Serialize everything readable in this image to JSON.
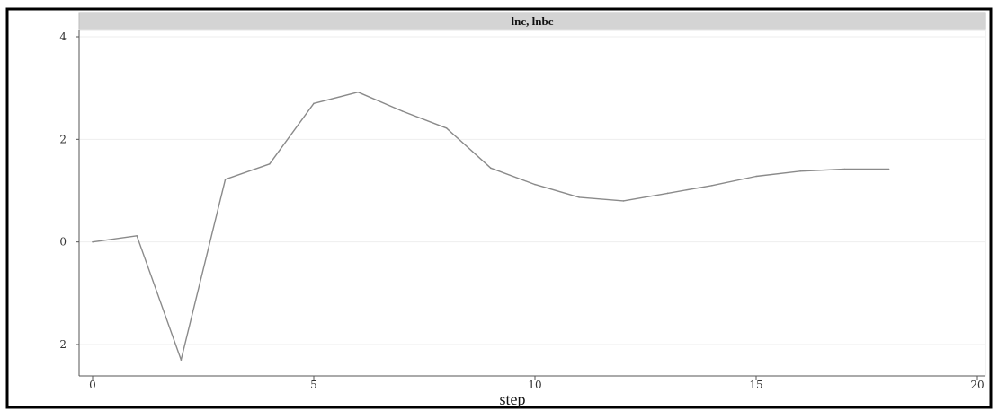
{
  "chart_data": {
    "type": "line",
    "title": "lnc, lnbc",
    "xlabel": "step",
    "ylabel": "",
    "xlim": [
      0,
      20
    ],
    "ylim": [
      -2.5,
      4.2
    ],
    "x_ticks": [
      0,
      5,
      10,
      15,
      20
    ],
    "y_ticks": [
      -2,
      0,
      2,
      4
    ],
    "grid": true,
    "series": [
      {
        "x": [
          0,
          1,
          2,
          3,
          4,
          5,
          6,
          7,
          8,
          9,
          10,
          11,
          12,
          13,
          14,
          15,
          16,
          17,
          18
        ],
        "values": [
          0.0,
          0.12,
          -2.3,
          1.22,
          1.52,
          2.7,
          2.92,
          2.55,
          2.22,
          1.44,
          1.12,
          0.87,
          0.8,
          0.95,
          1.1,
          1.28,
          1.38,
          1.42,
          1.42
        ],
        "color": "#8a8a8a"
      }
    ]
  }
}
